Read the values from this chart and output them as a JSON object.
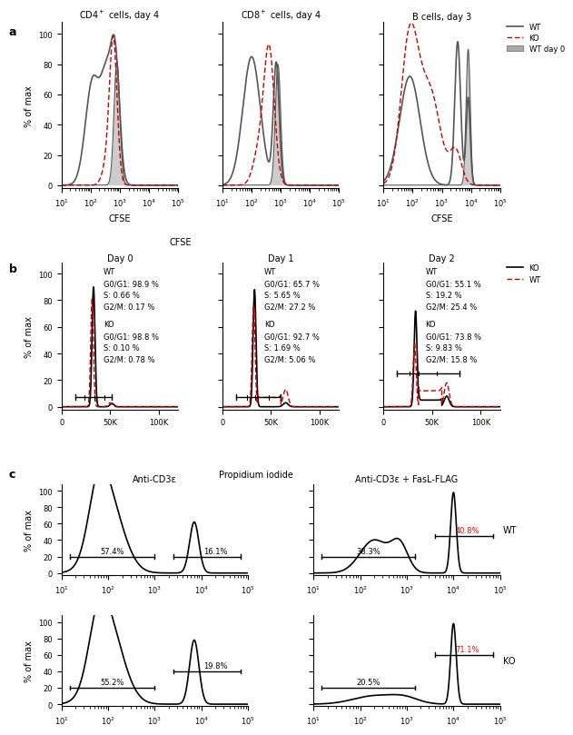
{
  "panel_a": {
    "subplots": [
      {
        "title": "CD4$^+$ cells, day 4",
        "xlabel": "CFSE"
      },
      {
        "title": "CD8$^+$ cells, day 4",
        "xlabel": "CFSE"
      },
      {
        "title": "B cells, day 3",
        "xlabel": "CFSE"
      }
    ]
  },
  "panel_b": {
    "subplots": [
      {
        "title": "Day 0"
      },
      {
        "title": "Day 1"
      },
      {
        "title": "Day 2"
      }
    ],
    "xlabel": "Propidium iodide",
    "annotations": [
      {
        "WT": {
          "G0G1": "98.9 %",
          "S": "0.66 %",
          "G2M": "0.17 %"
        },
        "KO": {
          "G0G1": "98.8 %",
          "S": "0.10 %",
          "G2M": "0.78 %"
        }
      },
      {
        "WT": {
          "G0G1": "65.7 %",
          "S": "5.65 %",
          "G2M": "27.2 %"
        },
        "KO": {
          "G0G1": "92.7 %",
          "S": "1.69 %",
          "G2M": "5.06 %"
        }
      },
      {
        "WT": {
          "G0G1": "55.1 %",
          "S": "19.2 %",
          "G2M": "25.4 %"
        },
        "KO": {
          "G0G1": "73.8 %",
          "S": "9.83 %",
          "G2M": "15.8 %"
        }
      }
    ]
  },
  "panel_c": {
    "col_titles": [
      "Anti-CD3ε",
      "Anti-CD3ε + FasL-FLAG"
    ],
    "row_labels": [
      "WT",
      "KO"
    ],
    "annotations": [
      {
        "left": {
          "pct1": "57.4%",
          "pct2": "16.1%"
        },
        "right": {
          "pct1": "38.3%",
          "pct2": "40.8%"
        }
      },
      {
        "left": {
          "pct1": "55.2%",
          "pct2": "19.8%"
        },
        "right": {
          "pct1": "20.5%",
          "pct2": "71.1%"
        }
      }
    ]
  }
}
